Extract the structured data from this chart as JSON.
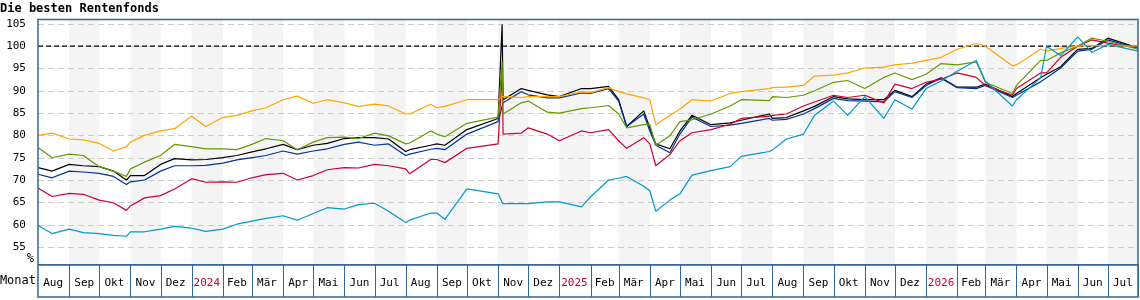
{
  "chart_data": {
    "type": "line",
    "title": "Die besten Rentenfonds",
    "xlabel": "Monat",
    "ylabel": "%",
    "x": [
      "2023-08-01",
      "2023-08-15",
      "2023-09-01",
      "2023-09-15",
      "2023-10-01",
      "2023-10-15",
      "2023-10-28",
      "2023-11-01",
      "2023-11-15",
      "2023-12-01",
      "2023-12-15",
      "2024-01-01",
      "2024-01-15",
      "2024-02-01",
      "2024-02-15",
      "2024-03-01",
      "2024-03-15",
      "2024-04-01",
      "2024-04-15",
      "2024-05-01",
      "2024-05-15",
      "2024-06-01",
      "2024-06-15",
      "2024-07-01",
      "2024-07-15",
      "2024-08-01",
      "2024-08-05",
      "2024-08-26",
      "2024-09-01",
      "2024-09-09",
      "2024-10-01",
      "2024-11-01",
      "2024-11-05",
      "2024-11-06",
      "2024-11-24",
      "2024-12-01",
      "2024-12-20",
      "2025-01-01",
      "2025-01-23",
      "2025-02-01",
      "2025-02-19",
      "2025-03-01",
      "2025-03-09",
      "2025-03-26",
      "2025-04-01",
      "2025-04-07",
      "2025-04-21",
      "2025-05-01",
      "2025-05-13",
      "2025-06-01",
      "2025-06-20",
      "2025-07-01",
      "2025-07-29",
      "2025-08-01",
      "2025-08-15",
      "2025-09-01",
      "2025-09-12",
      "2025-10-01",
      "2025-10-15",
      "2025-11-01",
      "2025-11-20",
      "2025-12-01",
      "2025-12-18",
      "2026-01-01",
      "2026-01-16",
      "2026-02-01",
      "2026-02-20",
      "2026-03-01",
      "2026-03-28",
      "2026-04-01",
      "2026-04-25",
      "2026-05-01",
      "2026-05-15",
      "2026-06-01",
      "2026-06-15",
      "2026-07-01",
      "2026-07-31"
    ],
    "series": [
      {
        "color": "#0099cc",
        "values": [
          59.8,
          58,
          59,
          58.2,
          58,
          57.6,
          57.4,
          58.4,
          58.4,
          59,
          59.6,
          59.2,
          58.5,
          59,
          60.1,
          60.8,
          61.4,
          62,
          61,
          62.5,
          63.8,
          63.5,
          64.5,
          64.8,
          63,
          60.5,
          61,
          62.6,
          62.6,
          61.2,
          68,
          66.9,
          65,
          64.7,
          64.7,
          64.7,
          65.1,
          65.1,
          64,
          66.2,
          70,
          70.4,
          70.8,
          68.6,
          67.6,
          63,
          65.5,
          66.9,
          71.1,
          72.1,
          73,
          75.3,
          76.4,
          76.7,
          79.2,
          80.3,
          84.5,
          87.7,
          84.5,
          88.7,
          83.8,
          88,
          85.9,
          90.5,
          92.2,
          94.4,
          96.8,
          92.2,
          86.6,
          88,
          92.9,
          100,
          97.9,
          102.1,
          98.6,
          100.4,
          98.9
        ]
      },
      {
        "color": "#ffa500",
        "values": [
          80,
          80.5,
          79.2,
          79,
          78.2,
          76.5,
          77.5,
          78.5,
          80,
          81,
          81.5,
          84.3,
          82,
          84,
          84.5,
          85.5,
          86.2,
          88,
          88.8,
          87.2,
          88,
          87.3,
          86.5,
          87,
          86.6,
          84.8,
          84.8,
          87,
          86.2,
          86.5,
          88,
          88,
          88.7,
          88.7,
          88.5,
          88.7,
          88.7,
          88.7,
          89.8,
          89.6,
          90.7,
          89.8,
          89.3,
          88.4,
          88,
          82.4,
          84.5,
          85.9,
          88,
          87.7,
          89.4,
          89.8,
          90.5,
          90.7,
          90.8,
          91.2,
          93.3,
          93.5,
          94,
          95.1,
          95.3,
          95.8,
          96.2,
          96.8,
          97.5,
          99.3,
          100.6,
          100,
          95.6,
          95.8,
          99.3,
          98.9,
          99.5,
          100,
          100.2,
          100.1,
          100
        ]
      },
      {
        "color": "#669900",
        "values": [
          77.3,
          75,
          75.8,
          75.5,
          73,
          72,
          70.8,
          72.5,
          74,
          75.5,
          78,
          77.5,
          77,
          77,
          76.8,
          78,
          79.3,
          78.8,
          76.8,
          78.5,
          79.5,
          79.6,
          79.3,
          80.5,
          79.9,
          78.1,
          78.3,
          81,
          80.3,
          79.7,
          82.7,
          84.1,
          96.5,
          84.8,
          87.3,
          87.7,
          85.2,
          85,
          86,
          86.2,
          86.7,
          84.8,
          81.7,
          82.4,
          82.4,
          77.8,
          79.9,
          83.1,
          83.5,
          84.8,
          86.6,
          88,
          87.8,
          88.7,
          88.5,
          89,
          90,
          91.9,
          92.3,
          90.5,
          93,
          94,
          92.5,
          93.7,
          96.1,
          95.8,
          96.5,
          91.9,
          89.4,
          91.2,
          96.8,
          96.8,
          98.5,
          100,
          101.8,
          101.1,
          99.3
        ]
      },
      {
        "color": "#cc0033",
        "values": [
          68.2,
          66.3,
          67,
          66.8,
          65.5,
          64.9,
          63.2,
          64.2,
          66,
          66.5,
          68,
          70.3,
          69.5,
          69.6,
          69.5,
          70.5,
          71.2,
          71.5,
          70,
          71,
          72.3,
          72.8,
          72.7,
          73.5,
          73.2,
          72.5,
          71.4,
          74.6,
          74.6,
          73.9,
          77.1,
          78.1,
          94.2,
          80.3,
          80.5,
          81.7,
          80.3,
          78.8,
          81,
          80.6,
          81.3,
          78.8,
          77.1,
          79.5,
          78.1,
          73.2,
          75.7,
          78.8,
          80.6,
          81.3,
          82.5,
          83.8,
          84.3,
          84.5,
          84.8,
          86.6,
          87.5,
          89,
          88.5,
          89,
          87.3,
          91.5,
          90.5,
          91.9,
          92.6,
          94,
          93,
          91.2,
          89,
          90.5,
          94,
          94,
          97.5,
          100,
          101.4,
          100.7,
          99.6
        ]
      },
      {
        "color": "#003399",
        "values": [
          71.3,
          70.5,
          72,
          71.8,
          71.5,
          70.8,
          69,
          69.6,
          70,
          72,
          73.2,
          73.2,
          73.3,
          73.8,
          74.5,
          75,
          75.5,
          76.5,
          75.8,
          76.5,
          77,
          78,
          78.5,
          77.8,
          78.1,
          75.5,
          75.8,
          76.9,
          77.1,
          76.8,
          80.3,
          83.1,
          86.5,
          87.3,
          89.8,
          89.1,
          88.4,
          88.4,
          89.5,
          89.4,
          90.5,
          87.7,
          82,
          84.8,
          81,
          77.8,
          76.1,
          80.3,
          84.1,
          82,
          82.3,
          82.7,
          83.8,
          83.4,
          83.6,
          84.8,
          86,
          88.3,
          87.8,
          87.7,
          87.5,
          89.8,
          88.5,
          91.2,
          92.8,
          90.7,
          90.5,
          91.2,
          88.5,
          89,
          92,
          92.9,
          95.1,
          98.9,
          99.3,
          101.4,
          99.5
        ]
      },
      {
        "color": "#000000",
        "values": [
          72.8,
          72,
          73.5,
          73.2,
          73,
          72,
          70,
          71,
          71,
          73.5,
          74.8,
          74.5,
          74.6,
          75,
          75.5,
          76.3,
          77,
          78,
          76.8,
          77.8,
          78.2,
          79.3,
          79.5,
          79.5,
          79.2,
          76.4,
          76.8,
          77.8,
          78.1,
          77.8,
          81.3,
          83.8,
          104.8,
          88,
          90.5,
          90.1,
          89.1,
          88.7,
          90.5,
          90.5,
          91,
          88,
          82,
          85.5,
          81.7,
          78.1,
          77,
          81,
          84.5,
          82.4,
          82.8,
          83.4,
          84.8,
          83.8,
          84,
          85.5,
          86.5,
          88.7,
          88.2,
          88,
          88,
          90.1,
          88.7,
          91.5,
          92.9,
          90.8,
          90.8,
          91.5,
          88.7,
          89.4,
          92.9,
          93.7,
          95.4,
          99.3,
          99.5,
          101.8,
          99.6
        ]
      }
    ],
    "xlim": [
      "2023-08-01",
      "2026-07-31"
    ],
    "xticks": [
      {
        "value": "2023-08-16",
        "label": "Aug"
      },
      {
        "value": "2023-09-16",
        "label": "Sep"
      },
      {
        "value": "2023-10-16",
        "label": "Okt"
      },
      {
        "value": "2023-11-16",
        "label": "Nov"
      },
      {
        "value": "2023-12-16",
        "label": "Dez"
      },
      {
        "value": "2024-01-16",
        "label": "2024"
      },
      {
        "value": "2024-02-15",
        "label": "Feb"
      },
      {
        "value": "2024-03-16",
        "label": "Mär"
      },
      {
        "value": "2024-04-16",
        "label": "Apr"
      },
      {
        "value": "2024-05-16",
        "label": "Mai"
      },
      {
        "value": "2024-06-16",
        "label": "Jun"
      },
      {
        "value": "2024-07-16",
        "label": "Jul"
      },
      {
        "value": "2024-08-16",
        "label": "Aug"
      },
      {
        "value": "2024-09-16",
        "label": "Sep"
      },
      {
        "value": "2024-10-16",
        "label": "Okt"
      },
      {
        "value": "2024-11-16",
        "label": "Nov"
      },
      {
        "value": "2024-12-16",
        "label": "Dez"
      },
      {
        "value": "2025-01-16",
        "label": "2025"
      },
      {
        "value": "2025-02-15",
        "label": "Feb"
      },
      {
        "value": "2025-03-16",
        "label": "Mär"
      },
      {
        "value": "2025-04-16",
        "label": "Apr"
      },
      {
        "value": "2025-05-16",
        "label": "Mai"
      },
      {
        "value": "2025-06-16",
        "label": "Jun"
      },
      {
        "value": "2025-07-16",
        "label": "Jul"
      },
      {
        "value": "2025-08-16",
        "label": "Aug"
      },
      {
        "value": "2025-09-16",
        "label": "Sep"
      },
      {
        "value": "2025-10-16",
        "label": "Okt"
      },
      {
        "value": "2025-11-16",
        "label": "Nov"
      },
      {
        "value": "2025-12-16",
        "label": "Dez"
      },
      {
        "value": "2026-01-16",
        "label": "2026"
      },
      {
        "value": "2026-02-15",
        "label": "Feb"
      },
      {
        "value": "2026-03-16",
        "label": "Mär"
      },
      {
        "value": "2026-04-16",
        "label": "Apr"
      },
      {
        "value": "2026-05-16",
        "label": "Mai"
      },
      {
        "value": "2026-06-16",
        "label": "Jun"
      },
      {
        "value": "2026-07-16",
        "label": "Jul"
      }
    ],
    "ylim": [
      51,
      106
    ],
    "yticks": [
      55,
      60,
      65,
      70,
      75,
      80,
      85,
      90,
      95,
      100,
      105
    ],
    "grid": "y",
    "marker": "none",
    "line_style": "solid",
    "ref_lines": [
      {
        "axis": "y",
        "value": 100,
        "color": "#000000",
        "line_style": "dashed"
      }
    ],
    "bands": [
      {
        "axis": "x",
        "from": "2023-09-01",
        "to": "2023-10-01",
        "color": "#f4f4f4"
      },
      {
        "axis": "x",
        "from": "2023-11-01",
        "to": "2023-12-01",
        "color": "#f4f4f4"
      },
      {
        "axis": "x",
        "from": "2024-01-01",
        "to": "2024-02-01",
        "color": "#f4f4f4"
      },
      {
        "axis": "x",
        "from": "2024-03-01",
        "to": "2024-04-01",
        "color": "#f4f4f4"
      },
      {
        "axis": "x",
        "from": "2024-05-01",
        "to": "2024-06-01",
        "color": "#f4f4f4"
      },
      {
        "axis": "x",
        "from": "2024-07-01",
        "to": "2024-08-01",
        "color": "#f4f4f4"
      },
      {
        "axis": "x",
        "from": "2024-09-01",
        "to": "2024-10-01",
        "color": "#f4f4f4"
      },
      {
        "axis": "x",
        "from": "2024-11-01",
        "to": "2024-12-01",
        "color": "#f4f4f4"
      },
      {
        "axis": "x",
        "from": "2025-01-01",
        "to": "2025-02-01",
        "color": "#f4f4f4"
      },
      {
        "axis": "x",
        "from": "2025-03-01",
        "to": "2025-04-01",
        "color": "#f4f4f4"
      },
      {
        "axis": "x",
        "from": "2025-05-01",
        "to": "2025-06-01",
        "color": "#f4f4f4"
      },
      {
        "axis": "x",
        "from": "2025-07-01",
        "to": "2025-08-01",
        "color": "#f4f4f4"
      },
      {
        "axis": "x",
        "from": "2025-09-01",
        "to": "2025-10-01",
        "color": "#f4f4f4"
      },
      {
        "axis": "x",
        "from": "2025-11-01",
        "to": "2025-12-01",
        "color": "#f4f4f4"
      },
      {
        "axis": "x",
        "from": "2026-01-01",
        "to": "2026-02-01",
        "color": "#f4f4f4"
      },
      {
        "axis": "x",
        "from": "2026-03-01",
        "to": "2026-04-01",
        "color": "#f4f4f4"
      },
      {
        "axis": "x",
        "from": "2026-05-01",
        "to": "2026-06-01",
        "color": "#f4f4f4"
      },
      {
        "axis": "x",
        "from": "2026-07-01",
        "to": "2026-07-31",
        "color": "#f4f4f4"
      }
    ]
  }
}
